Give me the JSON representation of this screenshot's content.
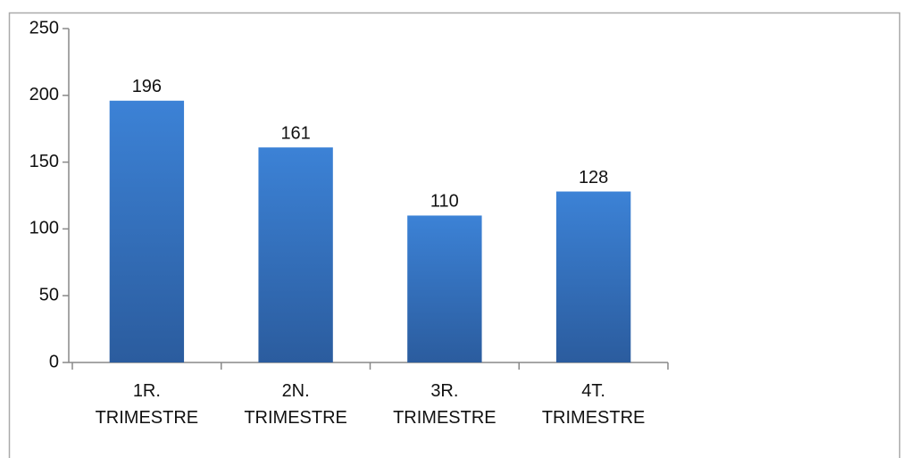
{
  "chart_data": {
    "type": "bar",
    "categories": [
      "1R. TRIMESTRE",
      "2N. TRIMESTRE",
      "3R. TRIMESTRE",
      "4T. TRIMESTRE"
    ],
    "values": [
      196,
      161,
      110,
      128
    ],
    "color": "#3a7bc8",
    "ylim": [
      0,
      250
    ],
    "yticks": [
      0,
      50,
      100,
      150,
      200,
      250
    ],
    "grid": false
  }
}
